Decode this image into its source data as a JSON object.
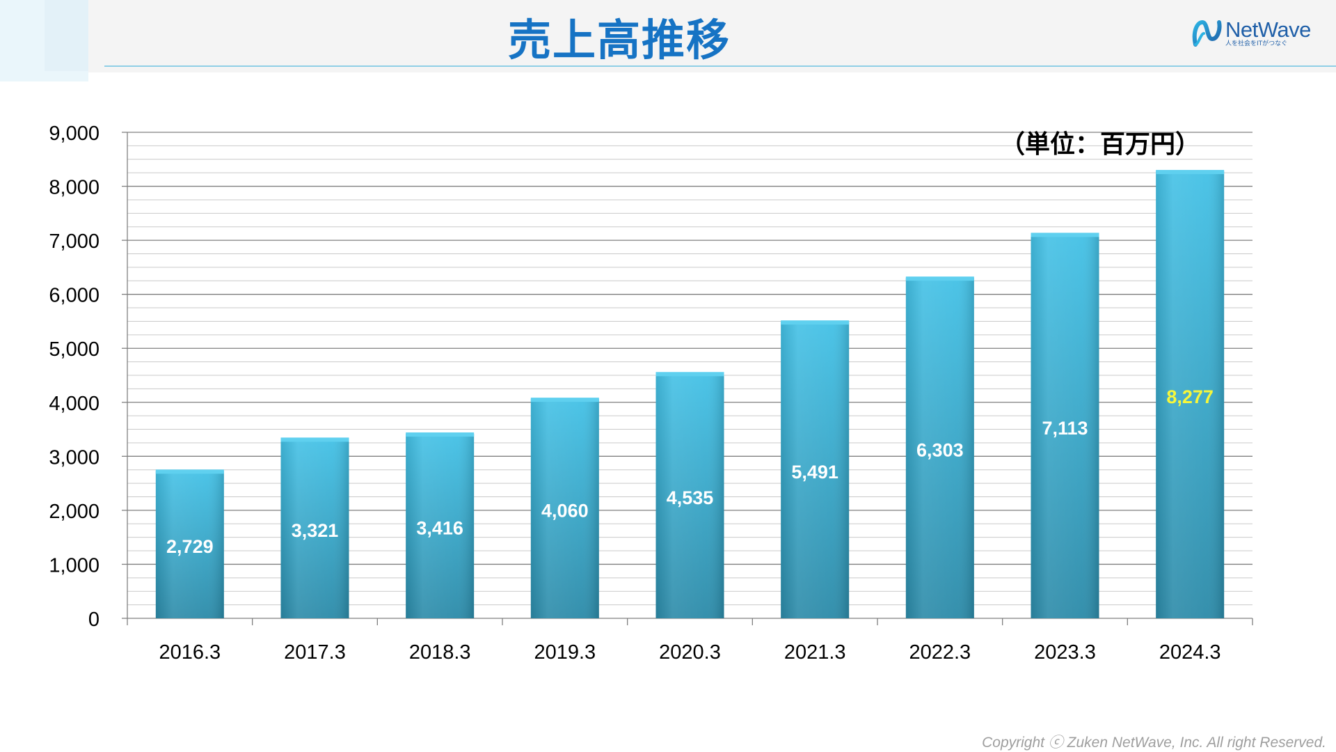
{
  "header": {
    "title": "売上高推移",
    "logo_name": "NetWave",
    "logo_tagline": "人を社会をITがつなぐ"
  },
  "footer": {
    "copyright": "Copyright ⓒ  Zuken NetWave, Inc. All right Reserved."
  },
  "colors": {
    "title": "#1673c4",
    "bar": "#2fa9d3",
    "bar_top": "#43c1e6",
    "bar_bottom": "#2b8aa8",
    "label": "#ffffff",
    "highlight_label": "#f7f73a"
  },
  "chart_data": {
    "type": "bar",
    "unit_note": "（単位：百万円）",
    "categories": [
      "2016.3",
      "2017.3",
      "2018.3",
      "2019.3",
      "2020.3",
      "2021.3",
      "2022.3",
      "2023.3",
      "2024.3"
    ],
    "values": [
      2729,
      3321,
      3416,
      4060,
      4535,
      5491,
      6303,
      7113,
      8277
    ],
    "value_labels": [
      "2,729",
      "3,321",
      "3,416",
      "4,060",
      "4,535",
      "5,491",
      "6,303",
      "7,113",
      "8,277"
    ],
    "highlight_index": 8,
    "ylim": [
      0,
      9000
    ],
    "major_step": 1000,
    "minor_step": 250,
    "y_tick_labels": [
      "0",
      "1,000",
      "2,000",
      "3,000",
      "4,000",
      "5,000",
      "6,000",
      "7,000",
      "8,000",
      "9,000"
    ],
    "grid": true,
    "legend": "none"
  }
}
